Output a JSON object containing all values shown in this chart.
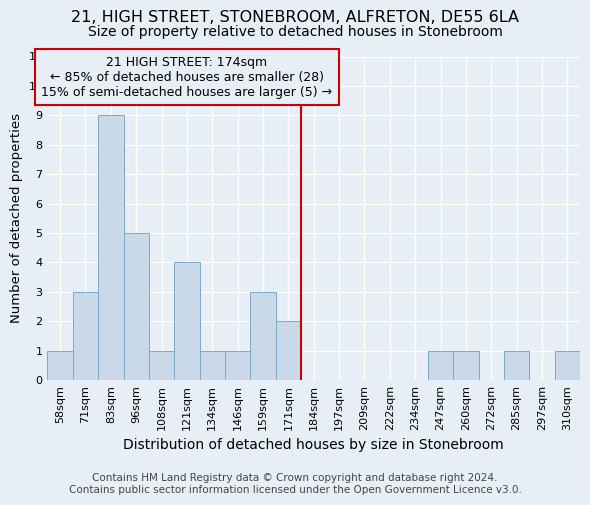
{
  "title": "21, HIGH STREET, STONEBROOM, ALFRETON, DE55 6LA",
  "subtitle": "Size of property relative to detached houses in Stonebroom",
  "xlabel": "Distribution of detached houses by size in Stonebroom",
  "ylabel": "Number of detached properties",
  "categories": [
    "58sqm",
    "71sqm",
    "83sqm",
    "96sqm",
    "108sqm",
    "121sqm",
    "134sqm",
    "146sqm",
    "159sqm",
    "171sqm",
    "184sqm",
    "197sqm",
    "209sqm",
    "222sqm",
    "234sqm",
    "247sqm",
    "260sqm",
    "272sqm",
    "285sqm",
    "297sqm",
    "310sqm"
  ],
  "values": [
    1,
    3,
    9,
    5,
    1,
    4,
    1,
    1,
    3,
    2,
    0,
    0,
    0,
    0,
    0,
    1,
    1,
    0,
    1,
    0,
    1
  ],
  "bar_color": "#c9d9e8",
  "bar_edge_color": "#7aaac8",
  "background_color": "#e8eef5",
  "ylim": [
    0,
    11
  ],
  "yticks": [
    0,
    1,
    2,
    3,
    4,
    5,
    6,
    7,
    8,
    9,
    10,
    11
  ],
  "vline_index": 9.5,
  "vline_color": "#cc0000",
  "annotation_text": "21 HIGH STREET: 174sqm\n← 85% of detached houses are smaller (28)\n15% of semi-detached houses are larger (5) →",
  "annotation_box_color": "#cc0000",
  "footer_text": "Contains HM Land Registry data © Crown copyright and database right 2024.\nContains public sector information licensed under the Open Government Licence v3.0.",
  "title_fontsize": 11.5,
  "subtitle_fontsize": 10,
  "xlabel_fontsize": 10,
  "ylabel_fontsize": 9.5,
  "tick_fontsize": 8,
  "annotation_fontsize": 9,
  "footer_fontsize": 7.5
}
